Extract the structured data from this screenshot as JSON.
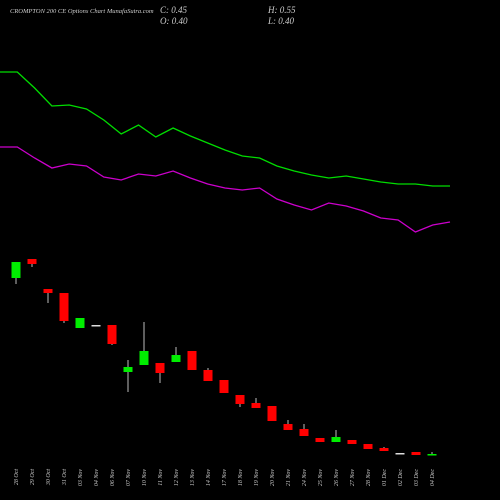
{
  "chart_data": {
    "type": "candlestick",
    "title": "CROMPTON 200 CE Options Chart MunafaSutra.com",
    "info": [
      "C: 0.45",
      "H: 0.55",
      "O: 0.40",
      "L: 0.40"
    ],
    "categories": [
      "28 Oct",
      "29 Oct",
      "30 Oct",
      "31 Oct",
      "03 Nov",
      "04 Nov",
      "06 Nov",
      "07 Nov",
      "10 Nov",
      "11 Nov",
      "12 Nov",
      "13 Nov",
      "14 Nov",
      "17 Nov",
      "18 Nov",
      "19 Nov",
      "20 Nov",
      "21 Nov",
      "24 Nov",
      "25 Nov",
      "26 Nov",
      "27 Nov",
      "28 Nov",
      "01 Dec",
      "02 Dec",
      "03 Dec",
      "04 Dec"
    ],
    "open": [
      9.25,
      10.2,
      8.7,
      8.5,
      6.75,
      6.9,
      6.9,
      4.55,
      4.9,
      5.0,
      5.05,
      5.6,
      4.65,
      4.15,
      3.4,
      3.0,
      2.85,
      1.95,
      1.7,
      1.25,
      1.05,
      1.15,
      0.95,
      0.75,
      0.5,
      0.55,
      0.4
    ],
    "high": [
      10.05,
      10.2,
      8.7,
      8.5,
      7.25,
      6.9,
      6.9,
      5.15,
      7.05,
      5.0,
      5.8,
      5.6,
      4.75,
      4.15,
      3.4,
      3.25,
      2.85,
      2.15,
      1.95,
      1.25,
      1.65,
      1.15,
      0.95,
      0.8,
      0.5,
      0.55,
      0.55
    ],
    "low": [
      8.95,
      9.8,
      8.0,
      7.0,
      6.75,
      6.9,
      5.9,
      3.55,
      4.9,
      4.0,
      5.05,
      4.65,
      4.1,
      3.5,
      2.8,
      2.75,
      2.1,
      1.65,
      1.35,
      1.05,
      1.05,
      0.95,
      0.7,
      0.6,
      0.5,
      0.4,
      0.4
    ],
    "close": [
      10.05,
      9.95,
      8.5,
      7.1,
      7.25,
      6.9,
      5.95,
      4.8,
      5.6,
      4.5,
      5.4,
      4.65,
      4.1,
      3.5,
      2.95,
      2.75,
      2.1,
      1.65,
      1.35,
      1.05,
      1.3,
      0.95,
      0.7,
      0.6,
      0.5,
      0.4,
      0.45
    ],
    "up_color": "#00ee00",
    "down_color": "#ff0000",
    "flat_color": "#dddddd",
    "lines": [
      {
        "color": "#00dd00",
        "values": [
          19.55,
          19.55,
          18.75,
          17.85,
          17.9,
          17.7,
          17.15,
          16.45,
          16.9,
          16.3,
          16.75,
          16.35,
          16.0,
          15.65,
          15.35,
          15.25,
          14.85,
          14.6,
          14.4,
          14.25,
          14.35,
          14.2,
          14.05,
          13.95,
          13.95,
          13.85,
          13.85
        ]
      },
      {
        "color": "#cc00cc",
        "values": [
          15.8,
          15.8,
          15.25,
          14.75,
          14.95,
          14.85,
          14.3,
          14.15,
          14.45,
          14.35,
          14.6,
          14.25,
          13.95,
          13.75,
          13.65,
          13.75,
          13.2,
          12.9,
          12.65,
          13.0,
          12.85,
          12.6,
          12.25,
          12.15,
          11.55,
          11.9,
          12.05
        ]
      }
    ],
    "ylim": [
      0,
      22
    ]
  }
}
